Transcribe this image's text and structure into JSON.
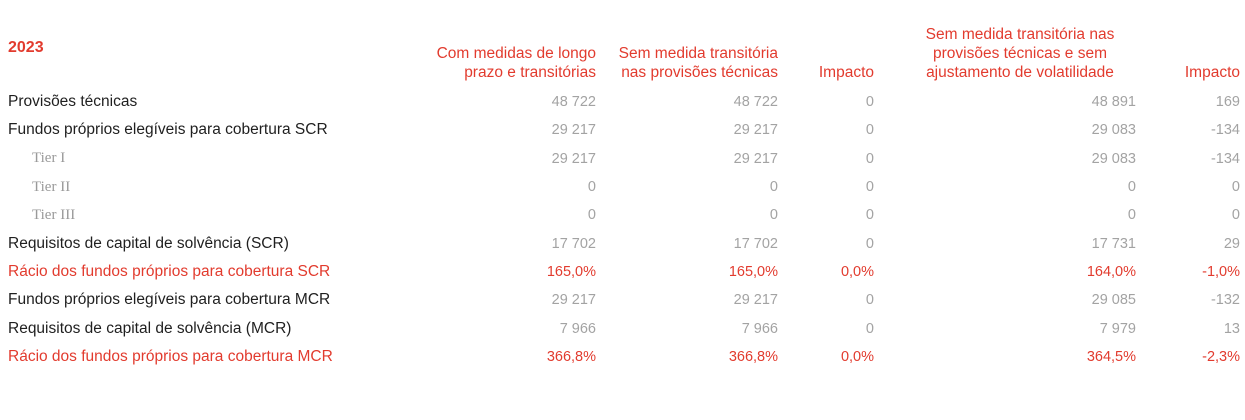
{
  "table": {
    "year": "2023",
    "headers": [
      "Com medidas de longo prazo e transitórias",
      "Sem medida transitória nas provisões técnicas",
      "Impacto",
      "Sem medida transitória nas provisões técnicas e sem ajustamento de volatilidade",
      "Impacto"
    ],
    "rows": [
      {
        "label": "Provisões técnicas",
        "values": [
          "48 722",
          "48 722",
          "0",
          "48 891",
          "169"
        ]
      },
      {
        "label": "Fundos próprios elegíveis para cobertura SCR",
        "values": [
          "29 217",
          "29 217",
          "0",
          "29 083",
          "-134"
        ]
      },
      {
        "label": "Tier I",
        "values": [
          "29 217",
          "29 217",
          "0",
          "29 083",
          "-134"
        ]
      },
      {
        "label": "Tier II",
        "values": [
          "0",
          "0",
          "0",
          "0",
          "0"
        ]
      },
      {
        "label": "Tier III",
        "values": [
          "0",
          "0",
          "0",
          "0",
          "0"
        ]
      },
      {
        "label": "Requisitos de capital de solvência (SCR)",
        "values": [
          "17 702",
          "17 702",
          "0",
          "17 731",
          "29"
        ]
      },
      {
        "label": "Rácio dos fundos próprios para cobertura SCR",
        "values": [
          "165,0%",
          "165,0%",
          "0,0%",
          "164,0%",
          "-1,0%"
        ]
      },
      {
        "label": "Fundos próprios elegíveis para cobertura MCR",
        "values": [
          "29 217",
          "29 217",
          "0",
          "29 085",
          "-132"
        ]
      },
      {
        "label": "Requisitos de capital de solvência (MCR)",
        "values": [
          "7 966",
          "7 966",
          "0",
          "7 979",
          "13"
        ]
      },
      {
        "label": "Rácio dos fundos próprios para cobertura MCR",
        "values": [
          "366,8%",
          "366,8%",
          "0,0%",
          "364,5%",
          "-2,3%"
        ]
      }
    ]
  },
  "colors": {
    "accent": "#e23b2e",
    "text": "#1f1f1f",
    "muted": "#a3a3a3"
  }
}
